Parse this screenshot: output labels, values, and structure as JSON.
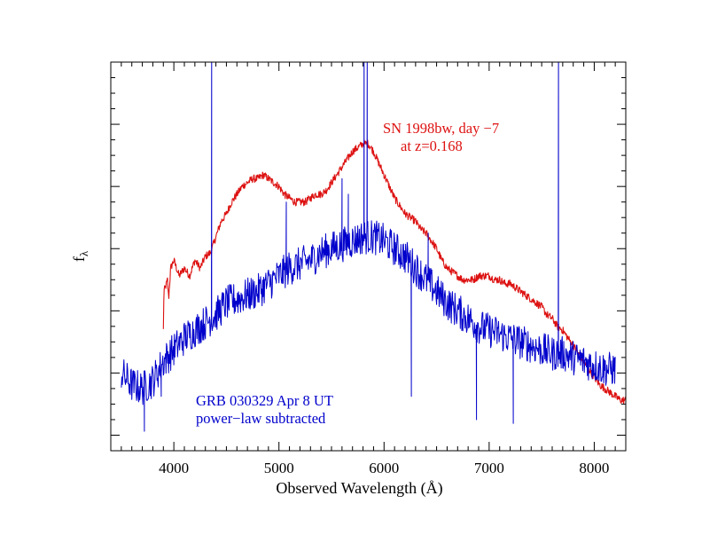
{
  "chart_data": {
    "type": "line",
    "xlabel": "Observed Wavelength (Å)",
    "ylabel": {
      "main": "f",
      "sub": "λ"
    },
    "xlim": [
      3400,
      8300
    ],
    "ylim": [
      0,
      1
    ],
    "x_ticks": [
      4000,
      5000,
      6000,
      7000,
      8000
    ],
    "y_ticks_labeled": false,
    "grid": false,
    "annotations": [
      {
        "lines": [
          "SN 1998bw, day −7",
          "at z=0.168"
        ],
        "color": "#dd1111",
        "at": {
          "x": 6000,
          "y": 0.86
        }
      },
      {
        "lines": [
          "GRB 030329 Apr 8 UT",
          "power−law subtracted"
        ],
        "color": "#0000cc",
        "at": {
          "x": 4200,
          "y": 0.12
        }
      }
    ],
    "series": [
      {
        "color": "#dd1111",
        "style": "noisy-line",
        "noise": 0.01,
        "points": [
          [
            3900,
            0.31
          ],
          [
            3905,
            0.41
          ],
          [
            3920,
            0.42
          ],
          [
            3940,
            0.44
          ],
          [
            3950,
            0.39
          ],
          [
            3970,
            0.47
          ],
          [
            4000,
            0.49
          ],
          [
            4050,
            0.45
          ],
          [
            4100,
            0.47
          ],
          [
            4150,
            0.45
          ],
          [
            4200,
            0.49
          ],
          [
            4250,
            0.47
          ],
          [
            4300,
            0.5
          ],
          [
            4350,
            0.51
          ],
          [
            4400,
            0.55
          ],
          [
            4450,
            0.59
          ],
          [
            4500,
            0.61
          ],
          [
            4550,
            0.64
          ],
          [
            4600,
            0.66
          ],
          [
            4650,
            0.68
          ],
          [
            4700,
            0.69
          ],
          [
            4750,
            0.7
          ],
          [
            4800,
            0.7
          ],
          [
            4850,
            0.71
          ],
          [
            4900,
            0.7
          ],
          [
            4950,
            0.69
          ],
          [
            5000,
            0.68
          ],
          [
            5050,
            0.66
          ],
          [
            5100,
            0.65
          ],
          [
            5150,
            0.64
          ],
          [
            5200,
            0.64
          ],
          [
            5250,
            0.64
          ],
          [
            5300,
            0.65
          ],
          [
            5350,
            0.66
          ],
          [
            5400,
            0.66
          ],
          [
            5450,
            0.67
          ],
          [
            5500,
            0.69
          ],
          [
            5550,
            0.71
          ],
          [
            5600,
            0.73
          ],
          [
            5650,
            0.75
          ],
          [
            5700,
            0.77
          ],
          [
            5750,
            0.78
          ],
          [
            5800,
            0.79
          ],
          [
            5850,
            0.79
          ],
          [
            5900,
            0.77
          ],
          [
            5950,
            0.74
          ],
          [
            6000,
            0.71
          ],
          [
            6050,
            0.68
          ],
          [
            6100,
            0.65
          ],
          [
            6150,
            0.63
          ],
          [
            6200,
            0.61
          ],
          [
            6250,
            0.6
          ],
          [
            6300,
            0.59
          ],
          [
            6350,
            0.57
          ],
          [
            6400,
            0.56
          ],
          [
            6450,
            0.54
          ],
          [
            6500,
            0.52
          ],
          [
            6550,
            0.49
          ],
          [
            6600,
            0.47
          ],
          [
            6650,
            0.46
          ],
          [
            6700,
            0.45
          ],
          [
            6750,
            0.44
          ],
          [
            6800,
            0.44
          ],
          [
            6850,
            0.44
          ],
          [
            6900,
            0.45
          ],
          [
            6950,
            0.45
          ],
          [
            7000,
            0.45
          ],
          [
            7050,
            0.44
          ],
          [
            7100,
            0.44
          ],
          [
            7150,
            0.43
          ],
          [
            7200,
            0.43
          ],
          [
            7250,
            0.42
          ],
          [
            7300,
            0.41
          ],
          [
            7350,
            0.4
          ],
          [
            7400,
            0.39
          ],
          [
            7450,
            0.38
          ],
          [
            7500,
            0.37
          ],
          [
            7550,
            0.35
          ],
          [
            7600,
            0.34
          ],
          [
            7650,
            0.32
          ],
          [
            7700,
            0.31
          ],
          [
            7750,
            0.29
          ],
          [
            7800,
            0.27
          ],
          [
            7850,
            0.25
          ],
          [
            7900,
            0.23
          ],
          [
            7950,
            0.21
          ],
          [
            8000,
            0.19
          ],
          [
            8050,
            0.17
          ],
          [
            8100,
            0.16
          ],
          [
            8150,
            0.15
          ],
          [
            8200,
            0.14
          ],
          [
            8250,
            0.13
          ],
          [
            8300,
            0.13
          ]
        ]
      },
      {
        "color": "#0000cc",
        "style": "noisy-line",
        "noise": 0.045,
        "points": [
          [
            3500,
            0.2
          ],
          [
            3600,
            0.17
          ],
          [
            3700,
            0.16
          ],
          [
            3800,
            0.18
          ],
          [
            3900,
            0.23
          ],
          [
            4000,
            0.26
          ],
          [
            4100,
            0.29
          ],
          [
            4200,
            0.31
          ],
          [
            4300,
            0.33
          ],
          [
            4400,
            0.35
          ],
          [
            4500,
            0.38
          ],
          [
            4600,
            0.39
          ],
          [
            4700,
            0.4
          ],
          [
            4800,
            0.41
          ],
          [
            4900,
            0.43
          ],
          [
            5000,
            0.45
          ],
          [
            5100,
            0.47
          ],
          [
            5200,
            0.48
          ],
          [
            5300,
            0.49
          ],
          [
            5400,
            0.51
          ],
          [
            5500,
            0.52
          ],
          [
            5600,
            0.53
          ],
          [
            5700,
            0.54
          ],
          [
            5800,
            0.55
          ],
          [
            5900,
            0.55
          ],
          [
            6000,
            0.54
          ],
          [
            6100,
            0.52
          ],
          [
            6200,
            0.5
          ],
          [
            6300,
            0.47
          ],
          [
            6400,
            0.44
          ],
          [
            6500,
            0.41
          ],
          [
            6600,
            0.38
          ],
          [
            6700,
            0.36
          ],
          [
            6800,
            0.34
          ],
          [
            6900,
            0.32
          ],
          [
            7000,
            0.31
          ],
          [
            7100,
            0.3
          ],
          [
            7200,
            0.29
          ],
          [
            7300,
            0.28
          ],
          [
            7400,
            0.27
          ],
          [
            7500,
            0.26
          ],
          [
            7600,
            0.25
          ],
          [
            7700,
            0.25
          ],
          [
            7800,
            0.24
          ],
          [
            7900,
            0.23
          ],
          [
            8000,
            0.22
          ],
          [
            8100,
            0.21
          ],
          [
            8200,
            0.21
          ]
        ],
        "spikes": [
          {
            "x": 4360,
            "y": 1.05
          },
          {
            "x": 5810,
            "y": 1.05
          },
          {
            "x": 5840,
            "y": 1.05
          },
          {
            "x": 7660,
            "y": 1.05
          },
          {
            "x": 5070,
            "y": 0.64
          },
          {
            "x": 5600,
            "y": 0.7
          },
          {
            "x": 5660,
            "y": 0.66
          },
          {
            "x": 6420,
            "y": 0.56
          },
          {
            "x": 6260,
            "y": 0.14
          },
          {
            "x": 6880,
            "y": 0.08
          },
          {
            "x": 7230,
            "y": 0.07
          },
          {
            "x": 3720,
            "y": 0.05
          },
          {
            "x": 3880,
            "y": 0.14
          }
        ]
      }
    ]
  }
}
